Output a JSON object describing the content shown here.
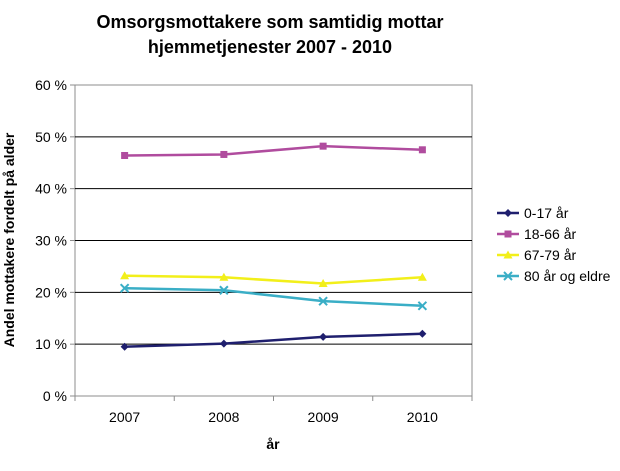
{
  "chart_data": {
    "type": "line",
    "title_line1": "Omsorgsmottakere som samtidig mottar",
    "title_line2": "hjemmetjenester 2007 - 2010",
    "xlabel": "år",
    "ylabel": "Andel mottakere fordelt på alder",
    "categories": [
      "2007",
      "2008",
      "2009",
      "2010"
    ],
    "ylim": [
      0,
      60
    ],
    "yticks": [
      0,
      10,
      20,
      30,
      40,
      50,
      60
    ],
    "ytick_labels": [
      "0 %",
      "10 %",
      "20 %",
      "30 %",
      "40 %",
      "50 %",
      "60 %"
    ],
    "grid": true,
    "legend_position": "right",
    "series": [
      {
        "name": "0-17 år",
        "values": [
          9.5,
          10.1,
          11.4,
          12.0
        ],
        "color": "#1f1f6e",
        "marker": "diamond"
      },
      {
        "name": "18-66 år",
        "values": [
          46.4,
          46.6,
          48.2,
          47.5
        ],
        "color": "#b04c9e",
        "marker": "square"
      },
      {
        "name": "67-79 år",
        "values": [
          23.2,
          22.9,
          21.7,
          22.9
        ],
        "color": "#f2ef1a",
        "marker": "triangle"
      },
      {
        "name": "80 år og eldre",
        "values": [
          20.8,
          20.4,
          18.3,
          17.4
        ],
        "color": "#3aaec6",
        "marker": "x"
      }
    ]
  }
}
